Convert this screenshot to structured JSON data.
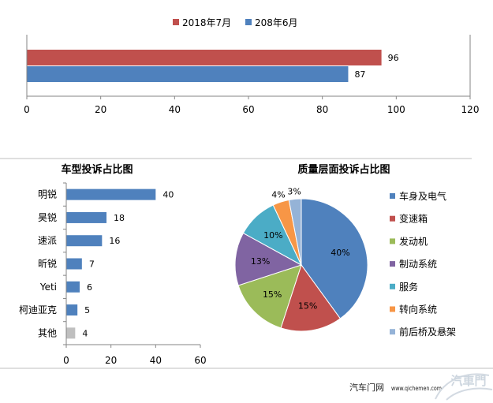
{
  "chart_data": [
    {
      "type": "bar",
      "orientation": "horizontal",
      "series": [
        {
          "name": "2018年7月",
          "values": [
            96
          ],
          "color": "#C0504D"
        },
        {
          "name": "208年6月",
          "values": [
            87
          ],
          "color": "#4F81BD"
        }
      ],
      "xlim": [
        0,
        120
      ],
      "xticks": [
        0,
        20,
        40,
        60,
        80,
        100,
        120
      ],
      "data_labels_shown": true,
      "legend": "top",
      "grid": false
    },
    {
      "type": "bar",
      "orientation": "horizontal",
      "title": "车型投诉占比图",
      "categories": [
        "明锐",
        "昊锐",
        "速派",
        "昕锐",
        "Yeti",
        "柯迪亚克",
        "其他"
      ],
      "values": [
        40,
        18,
        16,
        7,
        6,
        5,
        4
      ],
      "colors": [
        "#4F81BD",
        "#4F81BD",
        "#4F81BD",
        "#4F81BD",
        "#4F81BD",
        "#4F81BD",
        "#BFBFBF"
      ],
      "xlim": [
        0,
        60
      ],
      "xticks": [
        0,
        20,
        40,
        60
      ],
      "data_labels_shown": true,
      "grid": false
    },
    {
      "type": "pie",
      "title": "质量层面投诉占比图",
      "labels": [
        "车身及电气",
        "变速箱",
        "发动机",
        "制动系统",
        "服务",
        "转向系统",
        "前后桥及悬架"
      ],
      "values": [
        40,
        15,
        15,
        13,
        10,
        4,
        3
      ],
      "data_labels": [
        "40%",
        "15%",
        "15%",
        "13%",
        "10%",
        "4%",
        "3%"
      ],
      "colors": [
        "#4F81BD",
        "#C0504D",
        "#9BBB59",
        "#8064A2",
        "#4BACC6",
        "#F79646",
        "#95B3D7"
      ],
      "legend": "right"
    }
  ],
  "footer": {
    "site_name": "汽车门网",
    "url": "www.qichemen.com",
    "logo_text": "汽車門"
  }
}
